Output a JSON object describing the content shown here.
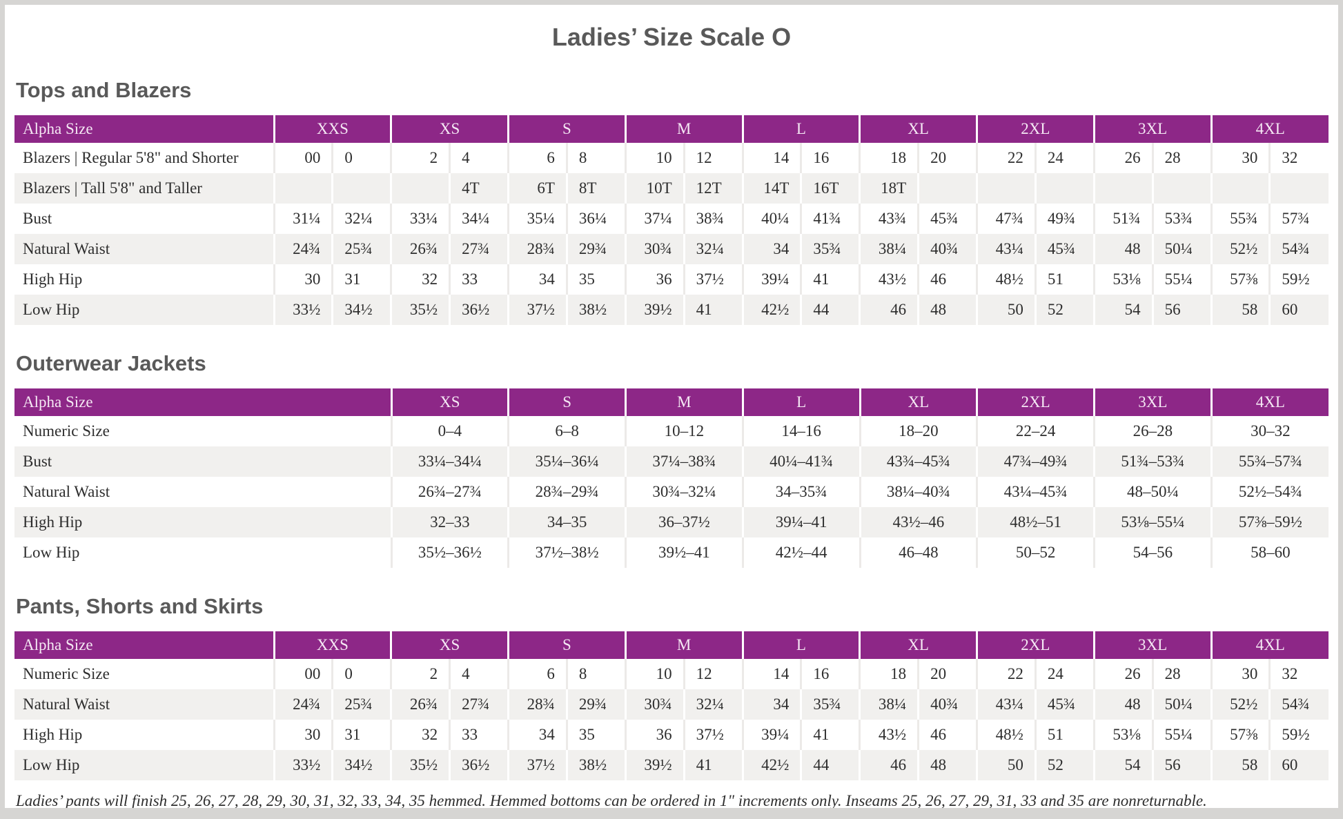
{
  "page": {
    "title": "Ladies’ Size Scale O"
  },
  "colors": {
    "header_purple": "#8d2787",
    "header_text": "#f5e8f4",
    "row_stripe": "#f1f0ee",
    "heading_gray": "#595959",
    "body_text": "#2d2d2d",
    "frame_gray": "#d6d5d3"
  },
  "tables": {
    "tops_blazers": {
      "heading": "Tops and Blazers",
      "corner_label": "Alpha Size",
      "sizes": [
        "XXS",
        "XS",
        "S",
        "M",
        "L",
        "XL",
        "2XL",
        "3XL",
        "4XL"
      ],
      "rows": [
        {
          "label": "Blazers  |  Regular 5'8\" and Shorter",
          "values": [
            "00",
            "0",
            "2",
            "4",
            "6",
            "8",
            "10",
            "12",
            "14",
            "16",
            "18",
            "20",
            "22",
            "24",
            "26",
            "28",
            "30",
            "32"
          ]
        },
        {
          "label": "Blazers  |  Tall 5'8\" and Taller",
          "values": [
            "",
            "",
            "",
            "4T",
            "6T",
            "8T",
            "10T",
            "12T",
            "14T",
            "16T",
            "18T",
            "",
            "",
            "",
            "",
            "",
            "",
            ""
          ]
        },
        {
          "label": "Bust",
          "values": [
            "31¼",
            "32¼",
            "33¼",
            "34¼",
            "35¼",
            "36¼",
            "37¼",
            "38¾",
            "40¼",
            "41¾",
            "43¾",
            "45¾",
            "47¾",
            "49¾",
            "51¾",
            "53¾",
            "55¾",
            "57¾"
          ]
        },
        {
          "label": "Natural Waist",
          "values": [
            "24¾",
            "25¾",
            "26¾",
            "27¾",
            "28¾",
            "29¾",
            "30¾",
            "32¼",
            "34",
            "35¾",
            "38¼",
            "40¾",
            "43¼",
            "45¾",
            "48",
            "50¼",
            "52½",
            "54¾"
          ]
        },
        {
          "label": "High Hip",
          "values": [
            "30",
            "31",
            "32",
            "33",
            "34",
            "35",
            "36",
            "37½",
            "39¼",
            "41",
            "43½",
            "46",
            "48½",
            "51",
            "53⅛",
            "55¼",
            "57⅜",
            "59½"
          ]
        },
        {
          "label": "Low Hip",
          "values": [
            "33½",
            "34½",
            "35½",
            "36½",
            "37½",
            "38½",
            "39½",
            "41",
            "42½",
            "44",
            "46",
            "48",
            "50",
            "52",
            "54",
            "56",
            "58",
            "60"
          ]
        }
      ]
    },
    "outerwear": {
      "heading": "Outerwear Jackets",
      "corner_label": "Alpha Size",
      "sizes": [
        "XS",
        "S",
        "M",
        "L",
        "XL",
        "2XL",
        "3XL",
        "4XL"
      ],
      "rows": [
        {
          "label": "Numeric Size",
          "values": [
            "0–4",
            "6–8",
            "10–12",
            "14–16",
            "18–20",
            "22–24",
            "26–28",
            "30–32"
          ]
        },
        {
          "label": "Bust",
          "values": [
            "33¼–34¼",
            "35¼–36¼",
            "37¼–38¾",
            "40¼–41¾",
            "43¾–45¾",
            "47¾–49¾",
            "51¾–53¾",
            "55¾–57¾"
          ]
        },
        {
          "label": "Natural Waist",
          "values": [
            "26¾–27¾",
            "28¾–29¾",
            "30¾–32¼",
            "34–35¾",
            "38¼–40¾",
            "43¼–45¾",
            "48–50¼",
            "52½–54¾"
          ]
        },
        {
          "label": "High Hip",
          "values": [
            "32–33",
            "34–35",
            "36–37½",
            "39¼–41",
            "43½–46",
            "48½–51",
            "53⅛–55¼",
            "57⅜–59½"
          ]
        },
        {
          "label": "Low Hip",
          "values": [
            "35½–36½",
            "37½–38½",
            "39½–41",
            "42½–44",
            "46–48",
            "50–52",
            "54–56",
            "58–60"
          ]
        }
      ]
    },
    "pants": {
      "heading": "Pants, Shorts and Skirts",
      "corner_label": "Alpha Size",
      "sizes": [
        "XXS",
        "XS",
        "S",
        "M",
        "L",
        "XL",
        "2XL",
        "3XL",
        "4XL"
      ],
      "rows": [
        {
          "label": "Numeric Size",
          "values": [
            "00",
            "0",
            "2",
            "4",
            "6",
            "8",
            "10",
            "12",
            "14",
            "16",
            "18",
            "20",
            "22",
            "24",
            "26",
            "28",
            "30",
            "32"
          ]
        },
        {
          "label": "Natural Waist",
          "values": [
            "24¾",
            "25¾",
            "26¾",
            "27¾",
            "28¾",
            "29¾",
            "30¾",
            "32¼",
            "34",
            "35¾",
            "38¼",
            "40¾",
            "43¼",
            "45¾",
            "48",
            "50¼",
            "52½",
            "54¾"
          ]
        },
        {
          "label": "High Hip",
          "values": [
            "30",
            "31",
            "32",
            "33",
            "34",
            "35",
            "36",
            "37½",
            "39¼",
            "41",
            "43½",
            "46",
            "48½",
            "51",
            "53⅛",
            "55¼",
            "57⅜",
            "59½"
          ]
        },
        {
          "label": "Low Hip",
          "values": [
            "33½",
            "34½",
            "35½",
            "36½",
            "37½",
            "38½",
            "39½",
            "41",
            "42½",
            "44",
            "46",
            "48",
            "50",
            "52",
            "54",
            "56",
            "58",
            "60"
          ]
        }
      ]
    }
  },
  "footnote": "Ladies’ pants will finish 25, 26, 27, 28, 29, 30, 31, 32, 33, 34, 35 hemmed. Hemmed bottoms can be ordered in 1\" increments only. Inseams 25, 26, 27, 29, 31, 33 and 35 are nonreturnable."
}
